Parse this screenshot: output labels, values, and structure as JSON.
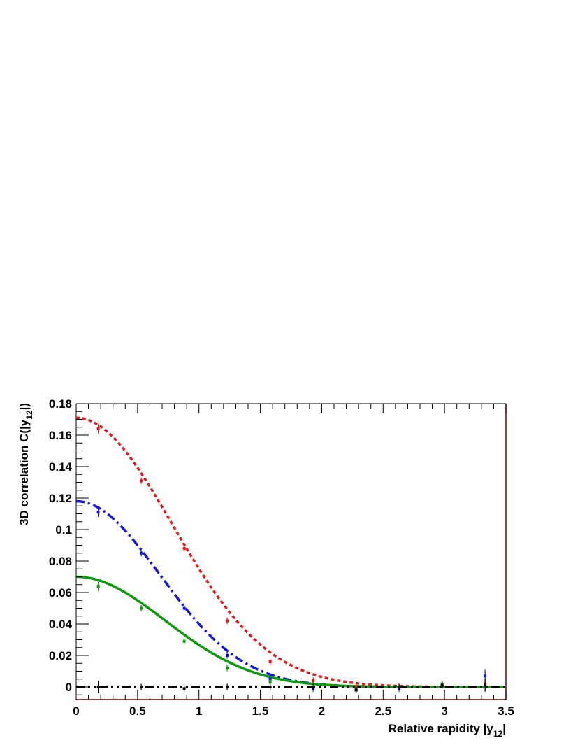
{
  "chart_data": {
    "type": "line",
    "xlabel": {
      "main": "Relative rapidity |y",
      "sub": "12",
      "end": "|"
    },
    "ylabel": {
      "main": "3D correlation C(|y",
      "sub": "12",
      "end": "|)"
    },
    "xlim": [
      0,
      3.5
    ],
    "ylim": [
      -0.008,
      0.18
    ],
    "x_ticks": [
      "0",
      "0.5",
      "1",
      "1.5",
      "2",
      "2.5",
      "3",
      "3.5"
    ],
    "y_ticks": [
      "0",
      "0.02",
      "0.04",
      "0.06",
      "0.08",
      "0.1",
      "0.12",
      "0.14",
      "0.16",
      "0.18"
    ],
    "grid": false,
    "colors": {
      "red": "#e8171b",
      "blue": "#1515e6",
      "green": "#0b9b0b",
      "black": "#000000",
      "frame_right": "#7a0000"
    },
    "fit_curves": [
      {
        "color": "red",
        "style": "dotted",
        "gaussian_amplitude": 0.171,
        "gaussian_sigma": 0.78
      },
      {
        "color": "blue",
        "style": "dash-dot",
        "gaussian_amplitude": 0.118,
        "gaussian_sigma": 0.68
      },
      {
        "color": "green",
        "style": "solid",
        "gaussian_amplitude": 0.07,
        "gaussian_sigma": 0.72
      },
      {
        "color": "black",
        "style": "dash-dot-dot",
        "gaussian_amplitude": 0.0,
        "gaussian_sigma": 1.0
      }
    ],
    "series": [
      {
        "color": "red",
        "x": [
          0.18,
          0.53,
          0.88,
          1.23,
          1.58,
          1.93,
          2.28,
          2.63,
          2.98,
          3.33
        ],
        "y": [
          0.164,
          0.131,
          0.088,
          0.042,
          0.016,
          0.004,
          0.0,
          0.0,
          0.001,
          0.002
        ],
        "err": [
          0.003,
          0.002,
          0.002,
          0.002,
          0.002,
          0.002,
          0.002,
          0.002,
          0.002,
          0.003
        ]
      },
      {
        "color": "blue",
        "x": [
          0.18,
          0.53,
          0.88,
          1.23,
          1.58,
          1.93,
          2.28,
          2.63,
          2.98,
          3.33
        ],
        "y": [
          0.111,
          0.085,
          0.05,
          0.02,
          0.005,
          -0.001,
          -0.002,
          -0.001,
          0.001,
          0.007
        ],
        "err": [
          0.003,
          0.002,
          0.002,
          0.002,
          0.002,
          0.002,
          0.002,
          0.002,
          0.002,
          0.004
        ]
      },
      {
        "color": "green",
        "x": [
          0.18,
          0.53,
          0.88,
          1.23,
          1.58,
          1.93,
          2.28,
          2.63,
          2.98,
          3.33
        ],
        "y": [
          0.064,
          0.05,
          0.029,
          0.012,
          0.003,
          0.0,
          -0.001,
          0.0,
          0.002,
          0.0
        ],
        "err": [
          0.003,
          0.002,
          0.002,
          0.002,
          0.002,
          0.002,
          0.002,
          0.002,
          0.002,
          0.003
        ]
      },
      {
        "color": "black",
        "x": [
          0.18,
          0.53,
          0.88,
          1.23,
          1.58,
          1.93,
          2.28,
          2.63,
          2.98,
          3.33
        ],
        "y": [
          0.0,
          0.0,
          -0.001,
          0.0,
          0.0,
          0.0,
          -0.002,
          0.0,
          0.001,
          0.001
        ],
        "err": [
          0.004,
          0.002,
          0.002,
          0.002,
          0.002,
          0.002,
          0.002,
          0.002,
          0.002,
          0.004
        ]
      }
    ]
  }
}
